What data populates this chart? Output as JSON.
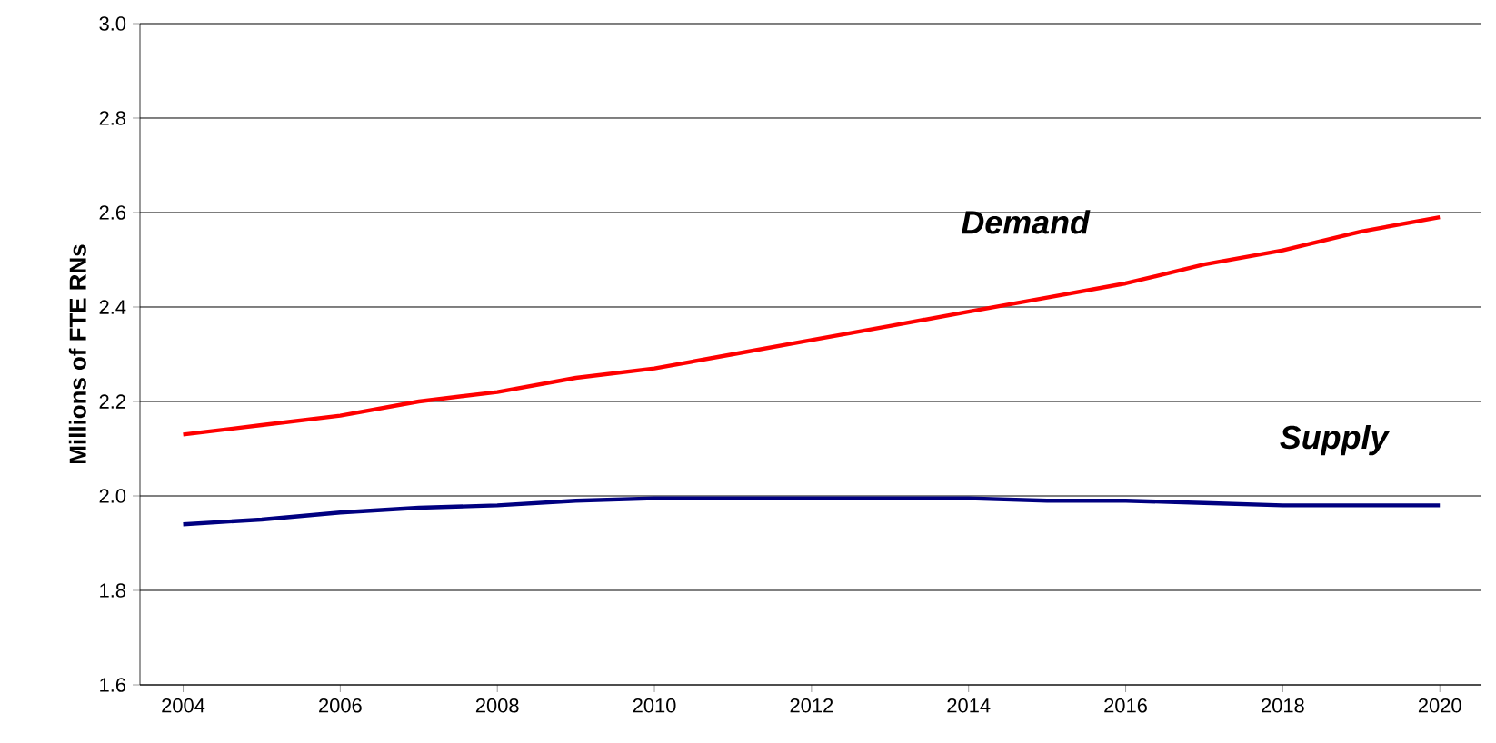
{
  "chart_data": {
    "type": "line",
    "ylabel": "Millions of FTE RNs",
    "x": [
      2004,
      2005,
      2006,
      2007,
      2008,
      2009,
      2010,
      2011,
      2012,
      2013,
      2014,
      2015,
      2016,
      2017,
      2018,
      2019,
      2020
    ],
    "series": [
      {
        "name": "Demand",
        "color": "#ff0000",
        "values": [
          2.13,
          2.15,
          2.17,
          2.2,
          2.22,
          2.25,
          2.27,
          2.3,
          2.33,
          2.36,
          2.39,
          2.42,
          2.45,
          2.49,
          2.52,
          2.56,
          2.59
        ]
      },
      {
        "name": "Supply",
        "color": "#000080",
        "values": [
          1.94,
          1.95,
          1.965,
          1.975,
          1.98,
          1.99,
          1.995,
          1.995,
          1.995,
          1.995,
          1.995,
          1.99,
          1.99,
          1.985,
          1.98,
          1.98,
          1.98
        ]
      }
    ],
    "xlim": [
      2003.45,
      2020.53
    ],
    "xticks": [
      2004,
      2006,
      2008,
      2010,
      2012,
      2014,
      2016,
      2018,
      2020
    ],
    "ylim": [
      1.6,
      3.0
    ],
    "yticks": [
      1.6,
      1.8,
      {
        "value": 2,
        "label": "2.0"
      },
      2.2,
      2.4,
      2.6,
      2.8,
      {
        "value": 3,
        "label": "3.0"
      }
    ],
    "grid": "y",
    "marker": "none",
    "line_style": "solid",
    "legend": false
  }
}
